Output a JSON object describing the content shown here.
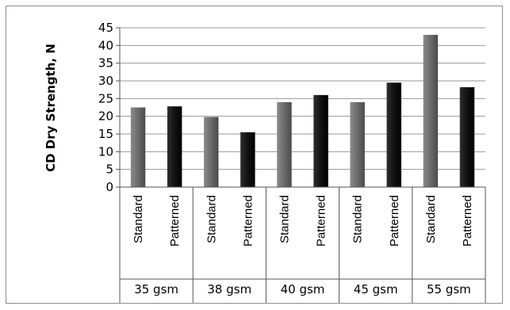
{
  "chart_data": {
    "type": "bar",
    "ylabel": "CD Dry Strength, N",
    "xlabel": "",
    "ylim": [
      0,
      45
    ],
    "yticks": [
      0,
      5,
      10,
      15,
      20,
      25,
      30,
      35,
      40,
      45
    ],
    "grid": true,
    "groups": [
      {
        "label": "35 gsm",
        "bars": [
          {
            "category": "Standard",
            "value": 22.5
          },
          {
            "category": "Patterned",
            "value": 22.8
          }
        ]
      },
      {
        "label": "38 gsm",
        "bars": [
          {
            "category": "Standard",
            "value": 19.8
          },
          {
            "category": "Patterned",
            "value": 15.5
          }
        ]
      },
      {
        "label": "40 gsm",
        "bars": [
          {
            "category": "Standard",
            "value": 24.0
          },
          {
            "category": "Patterned",
            "value": 26.0
          }
        ]
      },
      {
        "label": "45 gsm",
        "bars": [
          {
            "category": "Standard",
            "value": 24.0
          },
          {
            "category": "Patterned",
            "value": 29.5
          }
        ]
      },
      {
        "label": "55 gsm",
        "bars": [
          {
            "category": "Standard",
            "value": 43.0
          },
          {
            "category": "Patterned",
            "value": 28.2
          }
        ]
      }
    ],
    "colors": {
      "Standard": "#6e6e6e",
      "Patterned": "#141414",
      "grid": "#9a9a9a",
      "axis": "#555555"
    }
  }
}
